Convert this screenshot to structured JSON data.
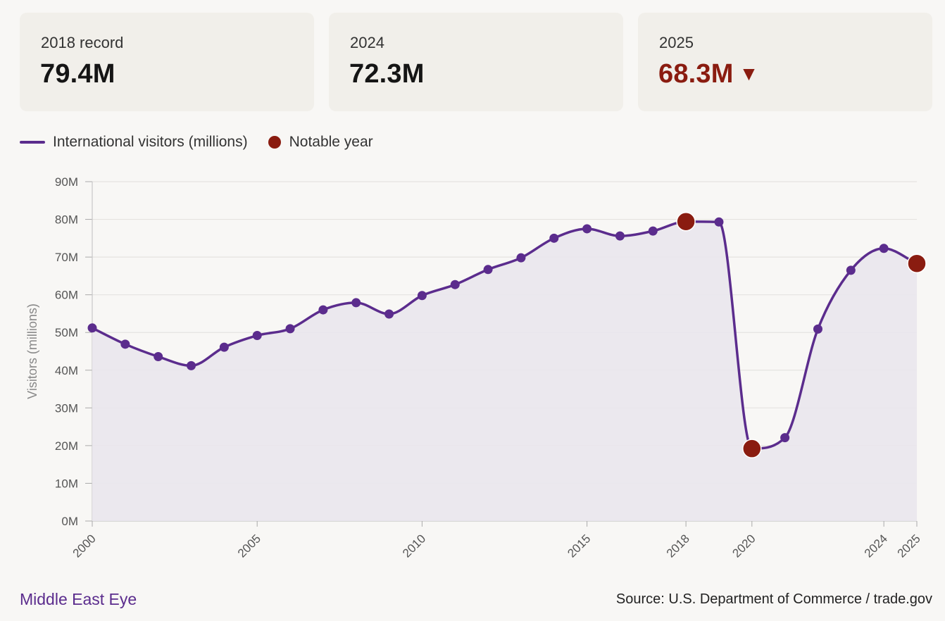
{
  "cards": [
    {
      "label": "2018 record",
      "value": "79.4M",
      "arrow": ""
    },
    {
      "label": "2024",
      "value": "72.3M",
      "arrow": ""
    },
    {
      "label": "2025",
      "value": "68.3M",
      "arrow": "▼"
    }
  ],
  "legend": {
    "line_label": "International visitors (millions)",
    "dot_label": "Notable year"
  },
  "colors": {
    "line": "#5b2c8d",
    "area": "#e9e5ed",
    "notable": "#8a1c10",
    "grid": "#e5e3e0"
  },
  "chart_data": {
    "type": "line",
    "x": [
      2000,
      2001,
      2002,
      2003,
      2004,
      2005,
      2006,
      2007,
      2008,
      2009,
      2010,
      2011,
      2012,
      2013,
      2014,
      2015,
      2016,
      2017,
      2018,
      2019,
      2020,
      2021,
      2022,
      2023,
      2024,
      2025
    ],
    "series": [
      {
        "name": "International visitors (millions)",
        "values": [
          51.2,
          46.9,
          43.6,
          41.2,
          46.1,
          49.2,
          51.0,
          56.0,
          57.9,
          54.9,
          59.8,
          62.7,
          66.7,
          69.8,
          75.0,
          77.5,
          75.6,
          76.9,
          79.4,
          79.3,
          19.2,
          22.1,
          50.9,
          66.5,
          72.3,
          68.3
        ]
      }
    ],
    "notable_years": [
      2018,
      2020,
      2025
    ],
    "ylabel": "Visitors (millions)",
    "ylim": [
      0,
      90
    ],
    "yticks": [
      "0M",
      "10M",
      "20M",
      "30M",
      "40M",
      "50M",
      "60M",
      "70M",
      "80M",
      "90M"
    ],
    "xticks": [
      "2000",
      "2005",
      "2010",
      "2015",
      "2018",
      "2020",
      "2024",
      "2025"
    ],
    "grid": true,
    "legend_position": "top-left"
  },
  "footer": {
    "brand": "Middle East Eye",
    "source": "Source: U.S. Department of Commerce / trade.gov"
  }
}
